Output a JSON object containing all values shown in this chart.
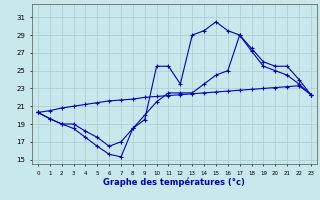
{
  "xlabel": "Graphe des températures (°c)",
  "background_color": "#c8e8ec",
  "grid_color": "#a8ccd0",
  "line_color": "#0000bb",
  "xlim": [
    -0.5,
    23.5
  ],
  "ylim": [
    14.5,
    32.5
  ],
  "yticks": [
    15,
    17,
    19,
    21,
    23,
    25,
    27,
    29,
    31
  ],
  "xticks": [
    0,
    1,
    2,
    3,
    4,
    5,
    6,
    7,
    8,
    9,
    10,
    11,
    12,
    13,
    14,
    15,
    16,
    17,
    18,
    19,
    20,
    21,
    22,
    23
  ],
  "line1_x": [
    0,
    1,
    2,
    3,
    4,
    5,
    6,
    7,
    8,
    9,
    10,
    11,
    12,
    13,
    14,
    15,
    16,
    17,
    18,
    19,
    20,
    21,
    22,
    23
  ],
  "line1_y": [
    20.3,
    20.5,
    20.8,
    21.0,
    21.2,
    21.4,
    21.6,
    21.7,
    21.8,
    22.0,
    22.1,
    22.2,
    22.3,
    22.4,
    22.5,
    22.6,
    22.7,
    22.8,
    22.9,
    23.0,
    23.1,
    23.2,
    23.3,
    22.3
  ],
  "line2_x": [
    0,
    1,
    2,
    3,
    4,
    5,
    6,
    7,
    8,
    9,
    10,
    11,
    12,
    13,
    14,
    15,
    16,
    17,
    18,
    19,
    20,
    21,
    22,
    23
  ],
  "line2_y": [
    20.3,
    19.6,
    19.0,
    18.5,
    17.5,
    16.5,
    15.6,
    15.3,
    18.5,
    19.5,
    25.5,
    25.5,
    23.5,
    29.0,
    29.5,
    30.5,
    29.5,
    29.0,
    27.5,
    26.0,
    25.5,
    25.5,
    24.0,
    22.3
  ],
  "line3_x": [
    0,
    1,
    2,
    3,
    4,
    5,
    6,
    7,
    8,
    9,
    10,
    11,
    12,
    13,
    14,
    15,
    16,
    17,
    18,
    19,
    20,
    21,
    22,
    23
  ],
  "line3_y": [
    20.3,
    19.6,
    19.0,
    19.0,
    18.2,
    17.5,
    16.5,
    17.0,
    18.5,
    20.0,
    21.5,
    22.5,
    22.5,
    22.5,
    23.5,
    24.5,
    25.0,
    29.0,
    27.2,
    25.5,
    25.0,
    24.5,
    23.5,
    22.3
  ]
}
